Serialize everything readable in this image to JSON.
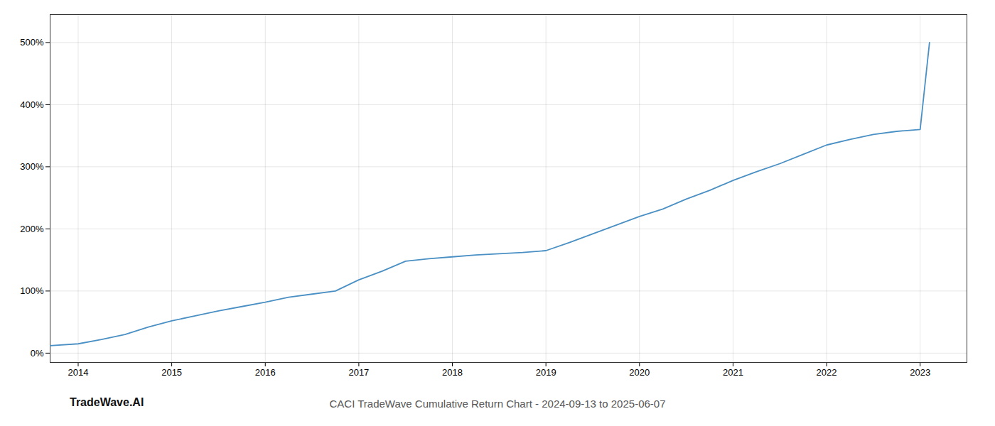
{
  "chart_data": {
    "type": "line",
    "title": "CACI TradeWave Cumulative Return Chart - 2024-09-13 to 2025-06-07",
    "annotations": [
      "TradeWave.AI"
    ],
    "x": [
      2013.7,
      2014.0,
      2014.25,
      2014.5,
      2014.75,
      2015.0,
      2015.25,
      2015.5,
      2015.75,
      2016.0,
      2016.25,
      2016.5,
      2016.75,
      2017.0,
      2017.25,
      2017.5,
      2017.75,
      2018.0,
      2018.25,
      2018.5,
      2018.75,
      2019.0,
      2019.25,
      2019.5,
      2019.75,
      2020.0,
      2020.25,
      2020.5,
      2020.75,
      2021.0,
      2021.25,
      2021.5,
      2021.75,
      2022.0,
      2022.25,
      2022.5,
      2022.75,
      2023.0,
      2023.1
    ],
    "values": [
      12,
      15,
      22,
      30,
      42,
      52,
      60,
      68,
      75,
      82,
      90,
      95,
      100,
      118,
      132,
      148,
      152,
      155,
      158,
      160,
      162,
      165,
      178,
      192,
      206,
      220,
      232,
      248,
      262,
      278,
      292,
      305,
      320,
      335,
      344,
      352,
      357,
      360,
      500
    ],
    "color": "#4a90c4",
    "xlim": [
      2013.7,
      2023.5
    ],
    "xticks": [
      2014,
      2015,
      2016,
      2017,
      2018,
      2019,
      2020,
      2021,
      2022,
      2023
    ],
    "ylim": [
      -15,
      545
    ],
    "yticks": [
      {
        "value": 0,
        "label": "0%"
      },
      {
        "value": 100,
        "label": "100%"
      },
      {
        "value": 200,
        "label": "200%"
      },
      {
        "value": 300,
        "label": "300%"
      },
      {
        "value": 400,
        "label": "400%"
      },
      {
        "value": 500,
        "label": "500%"
      }
    ],
    "grid": true
  }
}
